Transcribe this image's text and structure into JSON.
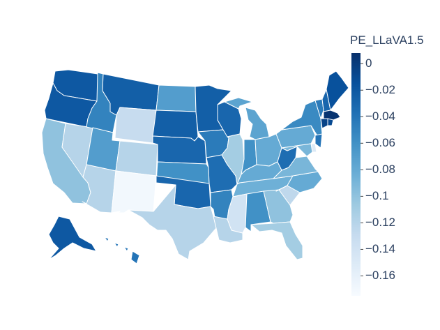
{
  "colorbar": {
    "title": "PE_LLaVA1.5",
    "range": [
      -0.175,
      0.008
    ],
    "ticks": [
      {
        "value": 0,
        "label": "0"
      },
      {
        "value": -0.02,
        "label": "−0.02"
      },
      {
        "value": -0.04,
        "label": "−0.04"
      },
      {
        "value": -0.06,
        "label": "−0.06"
      },
      {
        "value": -0.08,
        "label": "−0.08"
      },
      {
        "value": -0.1,
        "label": "−0.1"
      },
      {
        "value": -0.12,
        "label": "−0.12"
      },
      {
        "value": -0.14,
        "label": "−0.14"
      },
      {
        "value": -0.16,
        "label": "−0.16"
      }
    ],
    "colorscale": [
      "#f7fbff",
      "#deebf7",
      "#c6dbef",
      "#9ecae1",
      "#6baed6",
      "#4292c6",
      "#2171b5",
      "#08519c",
      "#08306b"
    ]
  },
  "chart_data": {
    "type": "choropleth",
    "title": "",
    "variable": "PE_LLaVA1.5",
    "scope": "usa",
    "values": {
      "WA": -0.02,
      "OR": -0.02,
      "CA": -0.1,
      "NV": -0.12,
      "ID": -0.05,
      "MT": -0.025,
      "WY": -0.13,
      "UT": -0.07,
      "AZ": -0.12,
      "CO": -0.12,
      "NM": -0.17,
      "ND": -0.07,
      "SD": -0.025,
      "NE": -0.03,
      "KS": -0.06,
      "OK": -0.03,
      "TX": -0.12,
      "MN": -0.025,
      "IA": -0.045,
      "MO": -0.035,
      "AR": -0.05,
      "LA": -0.12,
      "WI": -0.03,
      "IL": -0.11,
      "MI": -0.075,
      "IN": -0.06,
      "OH": -0.08,
      "KY": -0.08,
      "TN": -0.085,
      "MS": -0.14,
      "AL": -0.06,
      "GA": -0.1,
      "FL": -0.11,
      "SC": -0.125,
      "NC": -0.08,
      "VA": -0.09,
      "WV": -0.035,
      "PA": -0.08,
      "NY": -0.055,
      "VT": -0.045,
      "NH": -0.03,
      "ME": -0.015,
      "MA": 0.005,
      "CT": -0.005,
      "RI": -0.01,
      "NJ": -0.04,
      "DE": -0.15,
      "MD": -0.09,
      "AK": -0.02,
      "HI": -0.04
    }
  }
}
